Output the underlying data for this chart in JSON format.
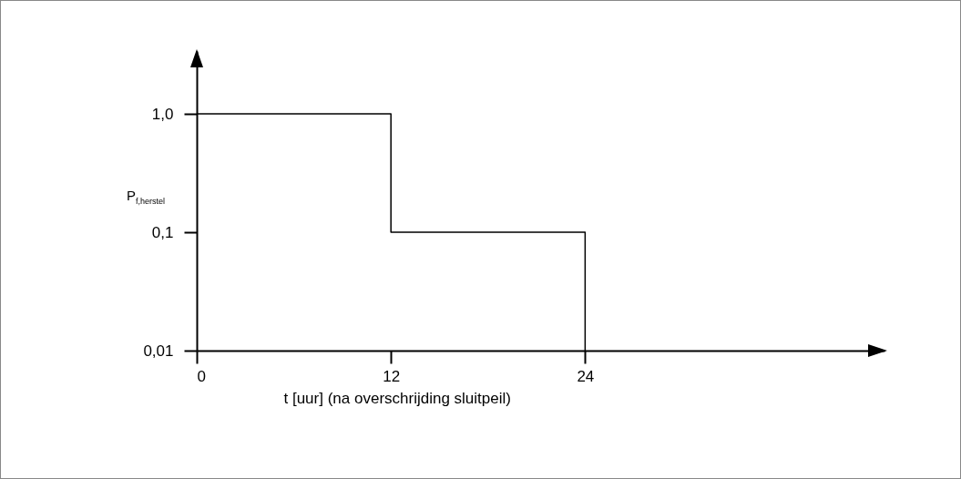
{
  "chart_data": {
    "type": "step",
    "xlabel": "t [uur] (na overschrijding sluitpeil)",
    "ylabel": "P$_{f,herstel}$",
    "x": [
      0,
      12,
      24
    ],
    "series": [
      {
        "color": "#000000",
        "values": [
          1.0,
          0.1,
          0.01
        ]
      }
    ],
    "xlim": [
      0,
      42.5
    ],
    "xticks": [
      0,
      12,
      24
    ],
    "ylim": [
      0.01,
      3.4
    ],
    "yticks": [
      {
        "value": 0.01,
        "label": "0,01"
      },
      {
        "value": 0.1,
        "label": "0,1"
      },
      {
        "value": 1.0,
        "label": "1,0"
      }
    ],
    "log": true,
    "line_style": "solid",
    "grid": false
  }
}
